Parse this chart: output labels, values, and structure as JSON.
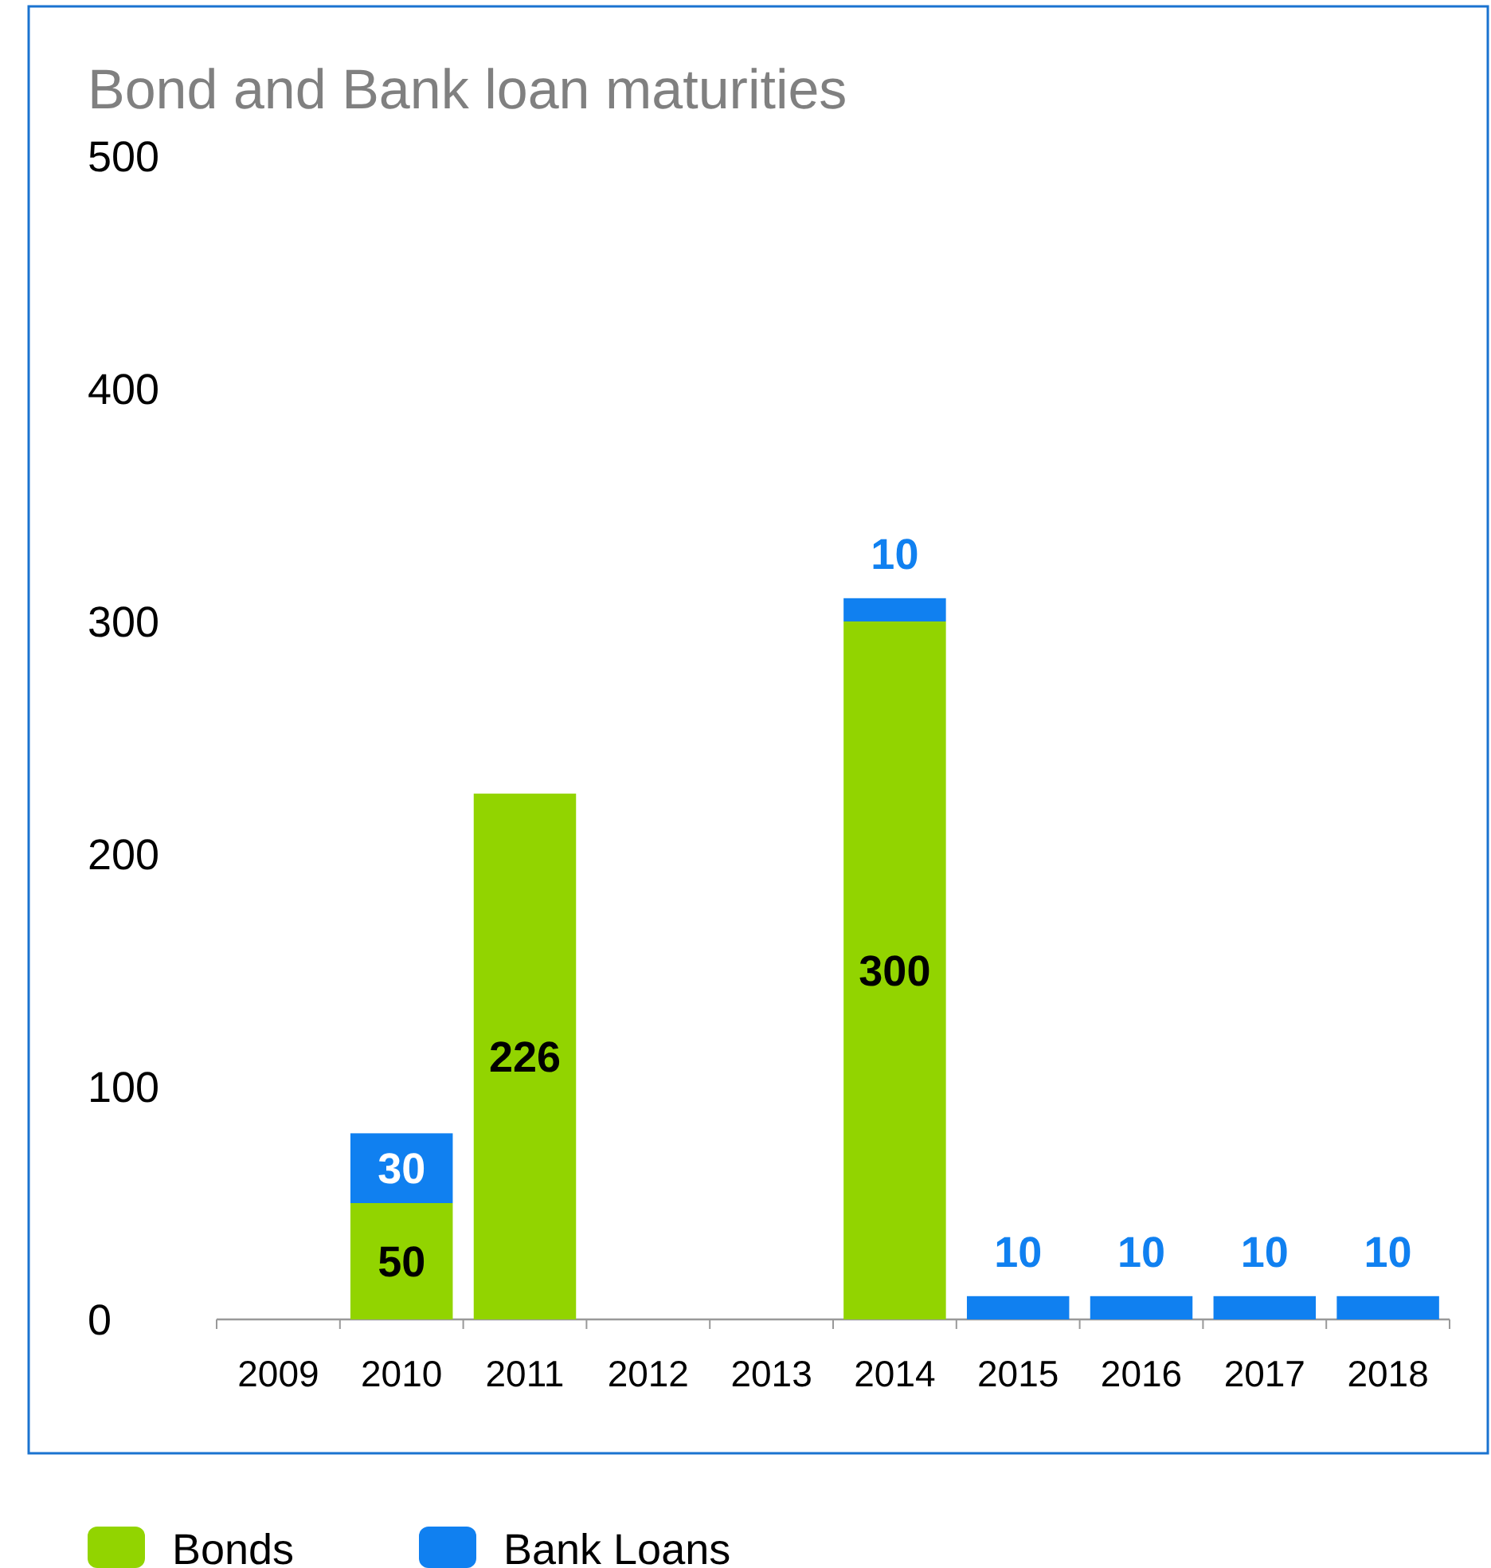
{
  "chart_data": {
    "type": "bar",
    "title": "Bond and Bank loan maturities",
    "stacked": true,
    "categories": [
      "2009",
      "2010",
      "2011",
      "2012",
      "2013",
      "2014",
      "2015",
      "2016",
      "2017",
      "2018"
    ],
    "series": [
      {
        "name": "Bonds",
        "color": "#92d400",
        "values": [
          null,
          50,
          226,
          null,
          null,
          300,
          null,
          null,
          null,
          null
        ]
      },
      {
        "name": "Bank Loans",
        "color": "#1080f0",
        "values": [
          null,
          30,
          null,
          null,
          null,
          10,
          10,
          10,
          10,
          10
        ]
      }
    ],
    "ylim": [
      0,
      500
    ],
    "yticks": [
      0,
      100,
      200,
      300,
      400,
      500
    ],
    "grid": false,
    "legend": "bottom",
    "data_labels": true
  }
}
